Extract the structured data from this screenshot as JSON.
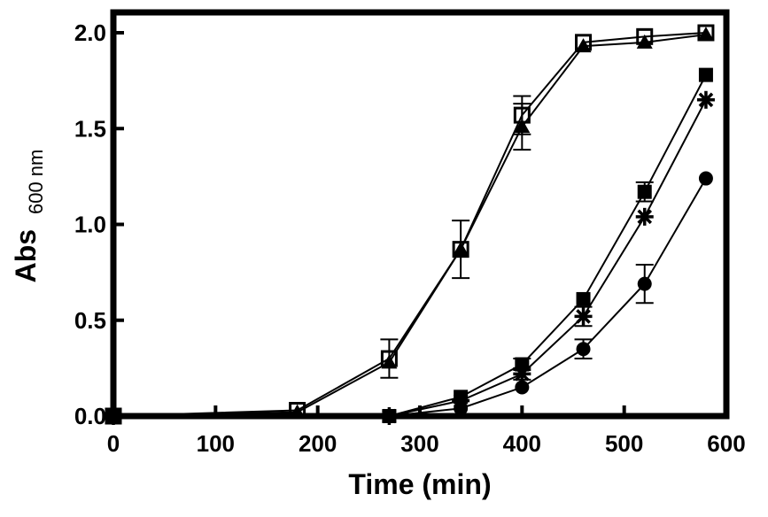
{
  "chart_data": {
    "type": "line",
    "xlabel": "Time (min)",
    "ylabel": "Abs",
    "ylabel_subscript": "600 nm",
    "xlim": [
      0,
      600
    ],
    "ylim": [
      0,
      2.0
    ],
    "x_ticks": [
      "0",
      "100",
      "200",
      "300",
      "400",
      "500",
      "600"
    ],
    "y_ticks": [
      "0.0",
      "0.5",
      "1.0",
      "1.5",
      "2.0"
    ],
    "grid": false,
    "legend": "none",
    "series": [
      {
        "marker": "open-square",
        "x": [
          0,
          180,
          270,
          340,
          400,
          460,
          520,
          580
        ],
        "y": [
          0.0,
          0.03,
          0.3,
          0.87,
          1.57,
          1.95,
          1.98,
          2.0
        ],
        "error": [
          0,
          0,
          0.1,
          0.15,
          0.1,
          0,
          0,
          0
        ]
      },
      {
        "marker": "filled-triangle",
        "x": [
          0,
          180,
          270,
          340,
          400,
          460,
          520,
          580
        ],
        "y": [
          0.0,
          0.02,
          0.28,
          0.87,
          1.51,
          1.93,
          1.95,
          1.99
        ],
        "error": [
          0,
          0,
          0,
          0,
          0.12,
          0,
          0,
          0
        ]
      },
      {
        "marker": "filled-square",
        "x": [
          0,
          270,
          340,
          400,
          460,
          520,
          580
        ],
        "y": [
          0.0,
          0.0,
          0.1,
          0.27,
          0.61,
          1.17,
          1.78
        ],
        "error": [
          0,
          0,
          0,
          0.03,
          0,
          0.05,
          0
        ]
      },
      {
        "marker": "asterisk",
        "x": [
          0,
          270,
          340,
          400,
          460,
          520,
          580
        ],
        "y": [
          0.0,
          0.0,
          0.08,
          0.22,
          0.52,
          1.04,
          1.65
        ],
        "error": [
          0,
          0,
          0,
          0.03,
          0.05,
          0,
          0
        ]
      },
      {
        "marker": "filled-circle",
        "x": [
          0,
          270,
          340,
          400,
          460,
          520,
          580
        ],
        "y": [
          0.0,
          0.0,
          0.04,
          0.15,
          0.35,
          0.69,
          1.24
        ],
        "error": [
          0,
          0,
          0,
          0,
          0.05,
          0.1,
          0
        ]
      }
    ]
  }
}
